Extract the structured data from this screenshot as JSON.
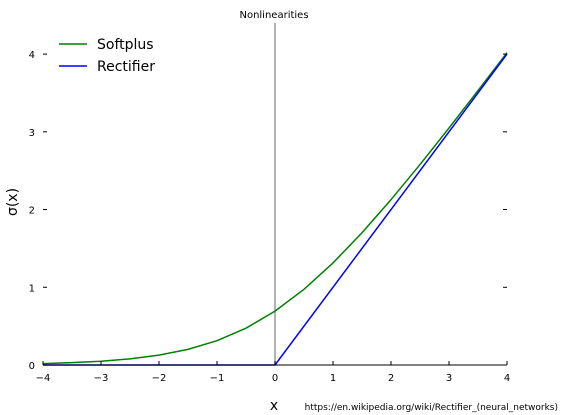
{
  "chart_data": {
    "type": "line",
    "title": "Nonlinearities",
    "xlabel": "x",
    "ylabel": "σ(x)",
    "xlim": [
      -4,
      4
    ],
    "ylim": [
      0,
      4.4
    ],
    "xticks": [
      -4,
      -3,
      -2,
      -1,
      0,
      1,
      2,
      3,
      4
    ],
    "xtick_labels": [
      "−4",
      "−3",
      "−2",
      "−1",
      "0",
      "1",
      "2",
      "3",
      "4"
    ],
    "yticks": [
      0,
      1,
      2,
      3,
      4
    ],
    "ytick_labels": [
      "0",
      "1",
      "2",
      "3",
      "4"
    ],
    "grid": false,
    "legend": "top-left",
    "series": [
      {
        "name": "Softplus",
        "color": "#008000",
        "x": [
          -4,
          -3.5,
          -3,
          -2.5,
          -2,
          -1.5,
          -1,
          -0.5,
          0,
          0.5,
          1,
          1.5,
          2,
          2.5,
          3,
          3.5,
          4
        ],
        "y": [
          0.018,
          0.03,
          0.049,
          0.079,
          0.127,
          0.201,
          0.313,
          0.474,
          0.693,
          0.974,
          1.313,
          1.701,
          2.127,
          2.579,
          3.049,
          3.53,
          4.018
        ]
      },
      {
        "name": "Rectifier",
        "color": "#0000ff",
        "x": [
          -4,
          0,
          4
        ],
        "y": [
          0,
          0,
          4
        ]
      }
    ],
    "zero_line_color": "#999999"
  },
  "caption": "https://en.wikipedia.org/wiki/Rectifier_(neural_networks)"
}
